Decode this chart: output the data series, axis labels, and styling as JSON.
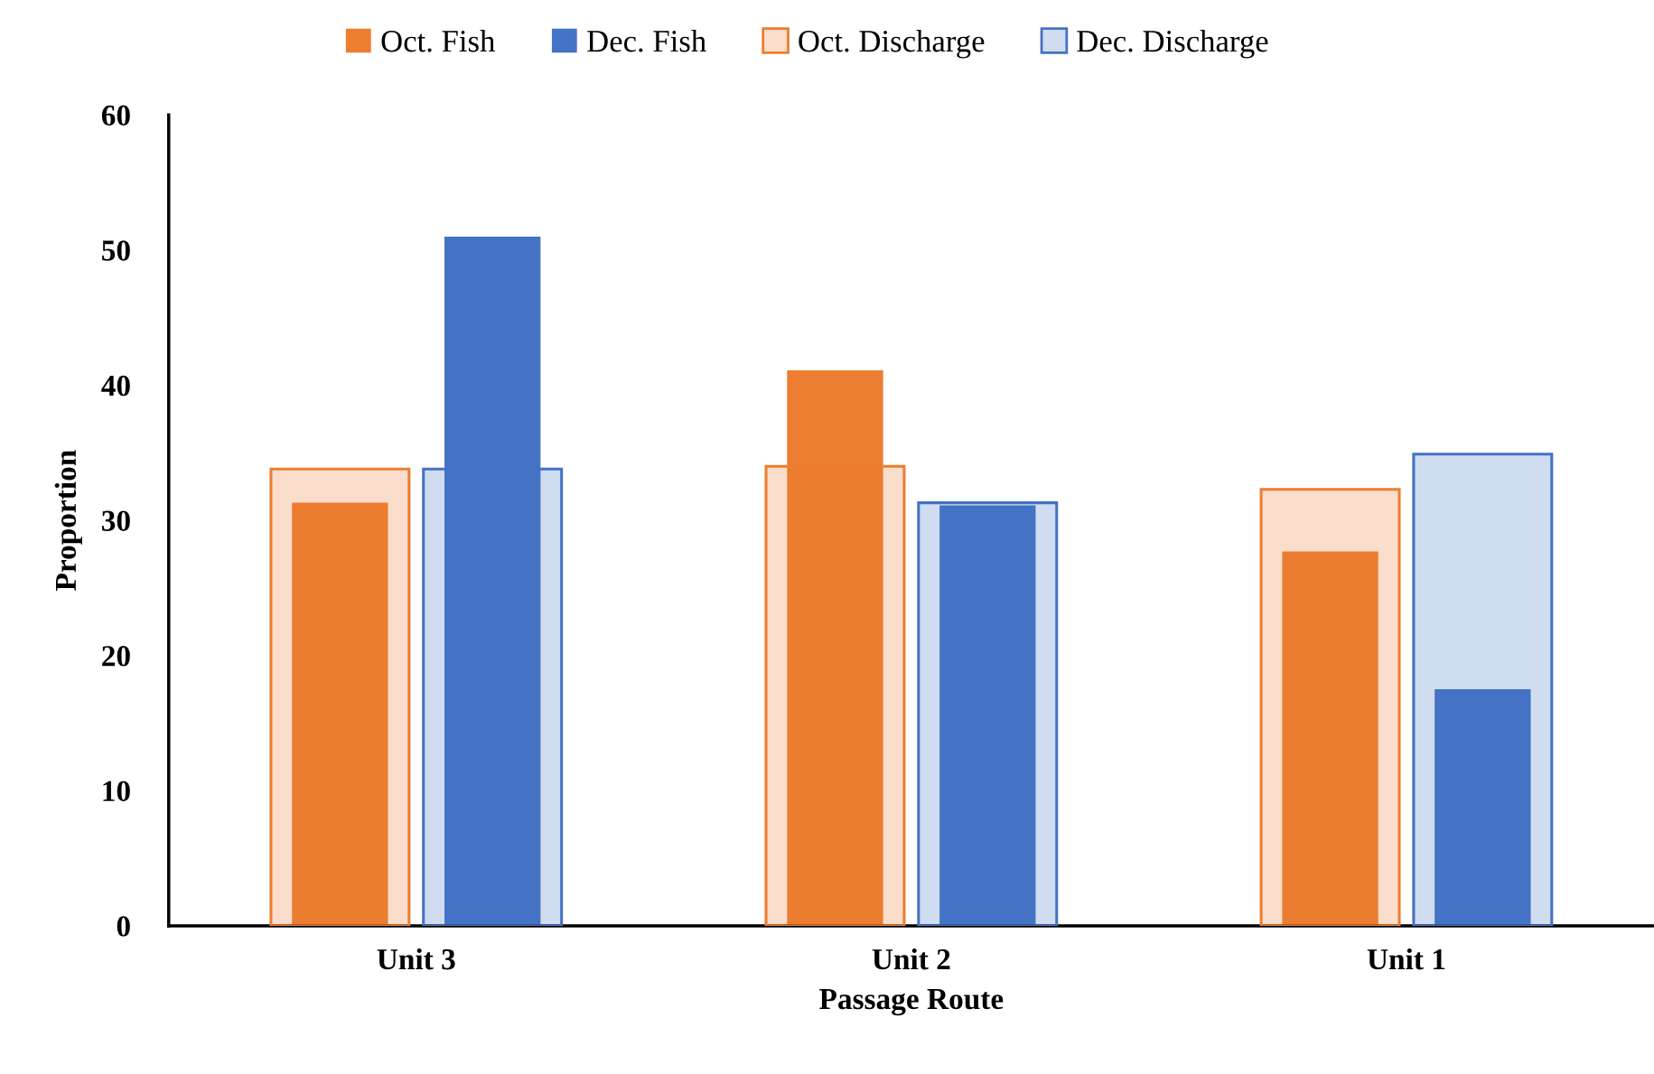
{
  "chart_data": {
    "type": "bar",
    "xlabel": "Passage Route",
    "ylabel": "Proportion",
    "categories": [
      "Unit 3",
      "Unit 2",
      "Unit 1"
    ],
    "series": [
      {
        "name": "Oct. Fish",
        "color": "#ed7d31",
        "values": [
          31.3,
          41.1,
          27.7
        ]
      },
      {
        "name": "Dec. Fish",
        "color": "#4472c4",
        "values": [
          51.0,
          31.1,
          17.5
        ]
      },
      {
        "name": "Oct. Discharge",
        "color": "#ed7d31",
        "values": [
          33.8,
          34.0,
          32.3
        ]
      },
      {
        "name": "Dec. Discharge",
        "color": "#4472c4",
        "values": [
          33.8,
          31.3,
          34.9
        ]
      }
    ],
    "ylim": [
      0,
      60
    ],
    "yticks": [
      0,
      10,
      20,
      30,
      40,
      50,
      60
    ],
    "legend": "top",
    "grid": false
  }
}
